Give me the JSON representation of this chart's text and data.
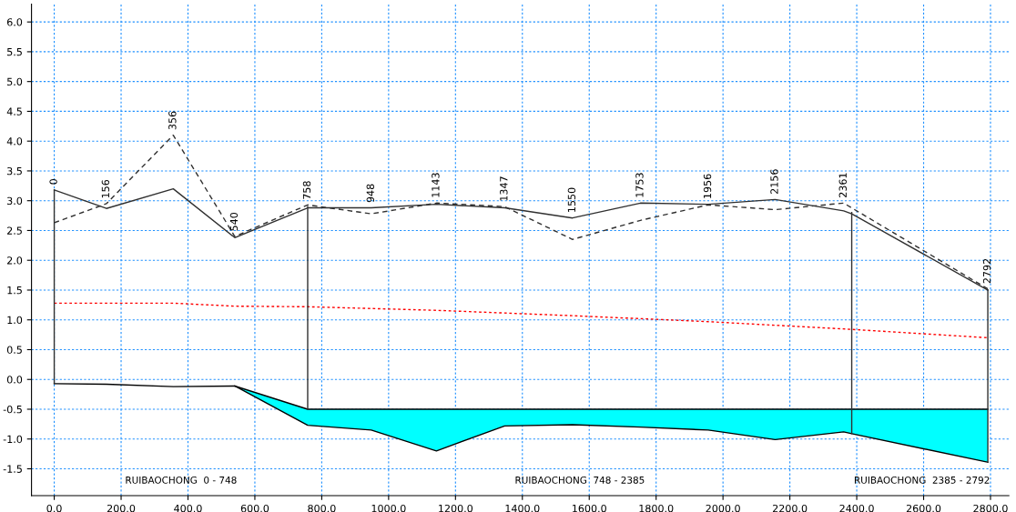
{
  "chart_data": {
    "type": "line",
    "xlim": [
      -68,
      2855
    ],
    "ylim": [
      -1.95,
      6.3
    ],
    "xticks": [
      {
        "value": 0,
        "label": "0.0"
      },
      {
        "value": 200,
        "label": "200.0"
      },
      {
        "value": 400,
        "label": "400.0"
      },
      {
        "value": 600,
        "label": "600.0"
      },
      {
        "value": 800,
        "label": "800.0"
      },
      {
        "value": 1000,
        "label": "1000.0"
      },
      {
        "value": 1200,
        "label": "1200.0"
      },
      {
        "value": 1400,
        "label": "1400.0"
      },
      {
        "value": 1600,
        "label": "1600.0"
      },
      {
        "value": 1800,
        "label": "1800.0"
      },
      {
        "value": 2000,
        "label": "2000.0"
      },
      {
        "value": 2200,
        "label": "2200.0"
      },
      {
        "value": 2400,
        "label": "2400.0"
      },
      {
        "value": 2600,
        "label": "2600.0"
      },
      {
        "value": 2800,
        "label": "2800.0"
      }
    ],
    "yticks": [
      -1.5,
      {
        "value": -1,
        "label": "-1.0"
      },
      -0.5,
      {
        "value": 0,
        "label": "0.0"
      },
      0.5,
      {
        "value": 1,
        "label": "1.0"
      },
      1.5,
      {
        "value": 2,
        "label": "2.0"
      },
      2.5,
      {
        "value": 3,
        "label": "3.0"
      },
      3.5,
      {
        "value": 4,
        "label": "4.0"
      },
      4.5,
      {
        "value": 5,
        "label": "5.0"
      },
      5.5,
      {
        "value": 6,
        "label": "6.0"
      }
    ],
    "grid": true,
    "series": [
      {
        "color": "#000000",
        "line_style": "solid",
        "x": [
          540,
          758,
          948,
          1143,
          1347,
          1550,
          1753,
          1956,
          2156,
          2361,
          2385,
          2792
        ],
        "values": [
          -0.11,
          -0.5,
          -0.5,
          -0.5,
          -0.5,
          -0.5,
          -0.5,
          -0.5,
          -0.5,
          -0.5,
          -0.5,
          -0.5
        ],
        "upper": [
          -0.11,
          -0.5,
          -0.5,
          -0.5,
          -0.5,
          -0.5,
          -0.5,
          -0.5,
          -0.5,
          -0.5,
          -0.5,
          -0.5
        ],
        "lower": [
          -0.11,
          -0.77,
          -0.85,
          -1.2,
          -0.78,
          -0.76,
          -0.8,
          -0.85,
          -1.01,
          -0.88,
          -0.91,
          -1.39
        ]
      },
      {
        "color": "#000000",
        "line_style": "solid",
        "x": [
          0,
          156,
          356,
          540,
          758,
          948,
          1143,
          1347,
          1550,
          1753,
          1956,
          2156,
          2361,
          2385,
          2792
        ],
        "values": [
          -0.07,
          -0.08,
          -0.12,
          -0.11,
          -0.77,
          -0.85,
          -1.2,
          -0.78,
          -0.76,
          -0.8,
          -0.85,
          -1.01,
          -0.88,
          -0.91,
          -1.39
        ]
      },
      {
        "color": "#303030",
        "line_style": "solid",
        "x": [
          0,
          156,
          356,
          540,
          758,
          948,
          1143,
          1347,
          1550,
          1753,
          1956,
          2156,
          2361,
          2385,
          2792
        ],
        "values": [
          3.18,
          2.87,
          3.2,
          2.38,
          2.88,
          2.88,
          2.94,
          2.88,
          2.71,
          2.96,
          2.94,
          3.02,
          2.83,
          2.78,
          1.5
        ]
      },
      {
        "color": "#303030",
        "line_style": "dashed",
        "x": [
          0,
          156,
          356,
          540,
          758,
          948,
          1143,
          1347,
          1550,
          1753,
          1956,
          2156,
          2361,
          2792
        ],
        "values": [
          2.63,
          2.95,
          4.1,
          2.4,
          2.93,
          2.78,
          2.96,
          2.9,
          2.35,
          2.67,
          2.93,
          2.85,
          2.96,
          1.52
        ]
      },
      {
        "color": "#ff0000",
        "line_style": "dotted",
        "x": [
          0,
          356,
          540,
          758,
          1143,
          1550,
          1956,
          2385,
          2792
        ],
        "values": [
          1.28,
          1.28,
          1.23,
          1.22,
          1.16,
          1.07,
          0.97,
          0.84,
          0.7
        ]
      },
      {
        "color": "#303030",
        "line_style": "solid",
        "x": [
          0,
          0,
          null,
          758,
          758,
          null,
          2385,
          2385,
          null,
          2792,
          2792
        ],
        "values": [
          -0.07,
          3.18,
          null,
          -0.5,
          2.9,
          null,
          -0.91,
          2.8,
          null,
          -1.39,
          1.5
        ]
      }
    ],
    "annotations": [
      {
        "text": "0",
        "x": 0,
        "y": 3.18
      },
      {
        "text": "156",
        "x": 156,
        "y": 2.95
      },
      {
        "text": "356",
        "x": 356,
        "y": 4.1
      },
      {
        "text": "540",
        "x": 540,
        "y": 2.4
      },
      {
        "text": "758",
        "x": 758,
        "y": 2.93
      },
      {
        "text": "948",
        "x": 948,
        "y": 2.88
      },
      {
        "text": "1143",
        "x": 1143,
        "y": 2.96
      },
      {
        "text": "1347",
        "x": 1347,
        "y": 2.9
      },
      {
        "text": "1550",
        "x": 1550,
        "y": 2.71
      },
      {
        "text": "1753",
        "x": 1753,
        "y": 2.96
      },
      {
        "text": "1956",
        "x": 1956,
        "y": 2.94
      },
      {
        "text": "2156",
        "x": 2156,
        "y": 3.02
      },
      {
        "text": "2361",
        "x": 2361,
        "y": 2.96
      },
      {
        "text": "2792",
        "x": 2792,
        "y": 1.52
      },
      "RUIBAOCHONG  0 - 748",
      "RUIBAOCHONG  748 - 2385",
      "RUIBAOCHONG  2385 - 2792"
    ],
    "legend": false
  }
}
